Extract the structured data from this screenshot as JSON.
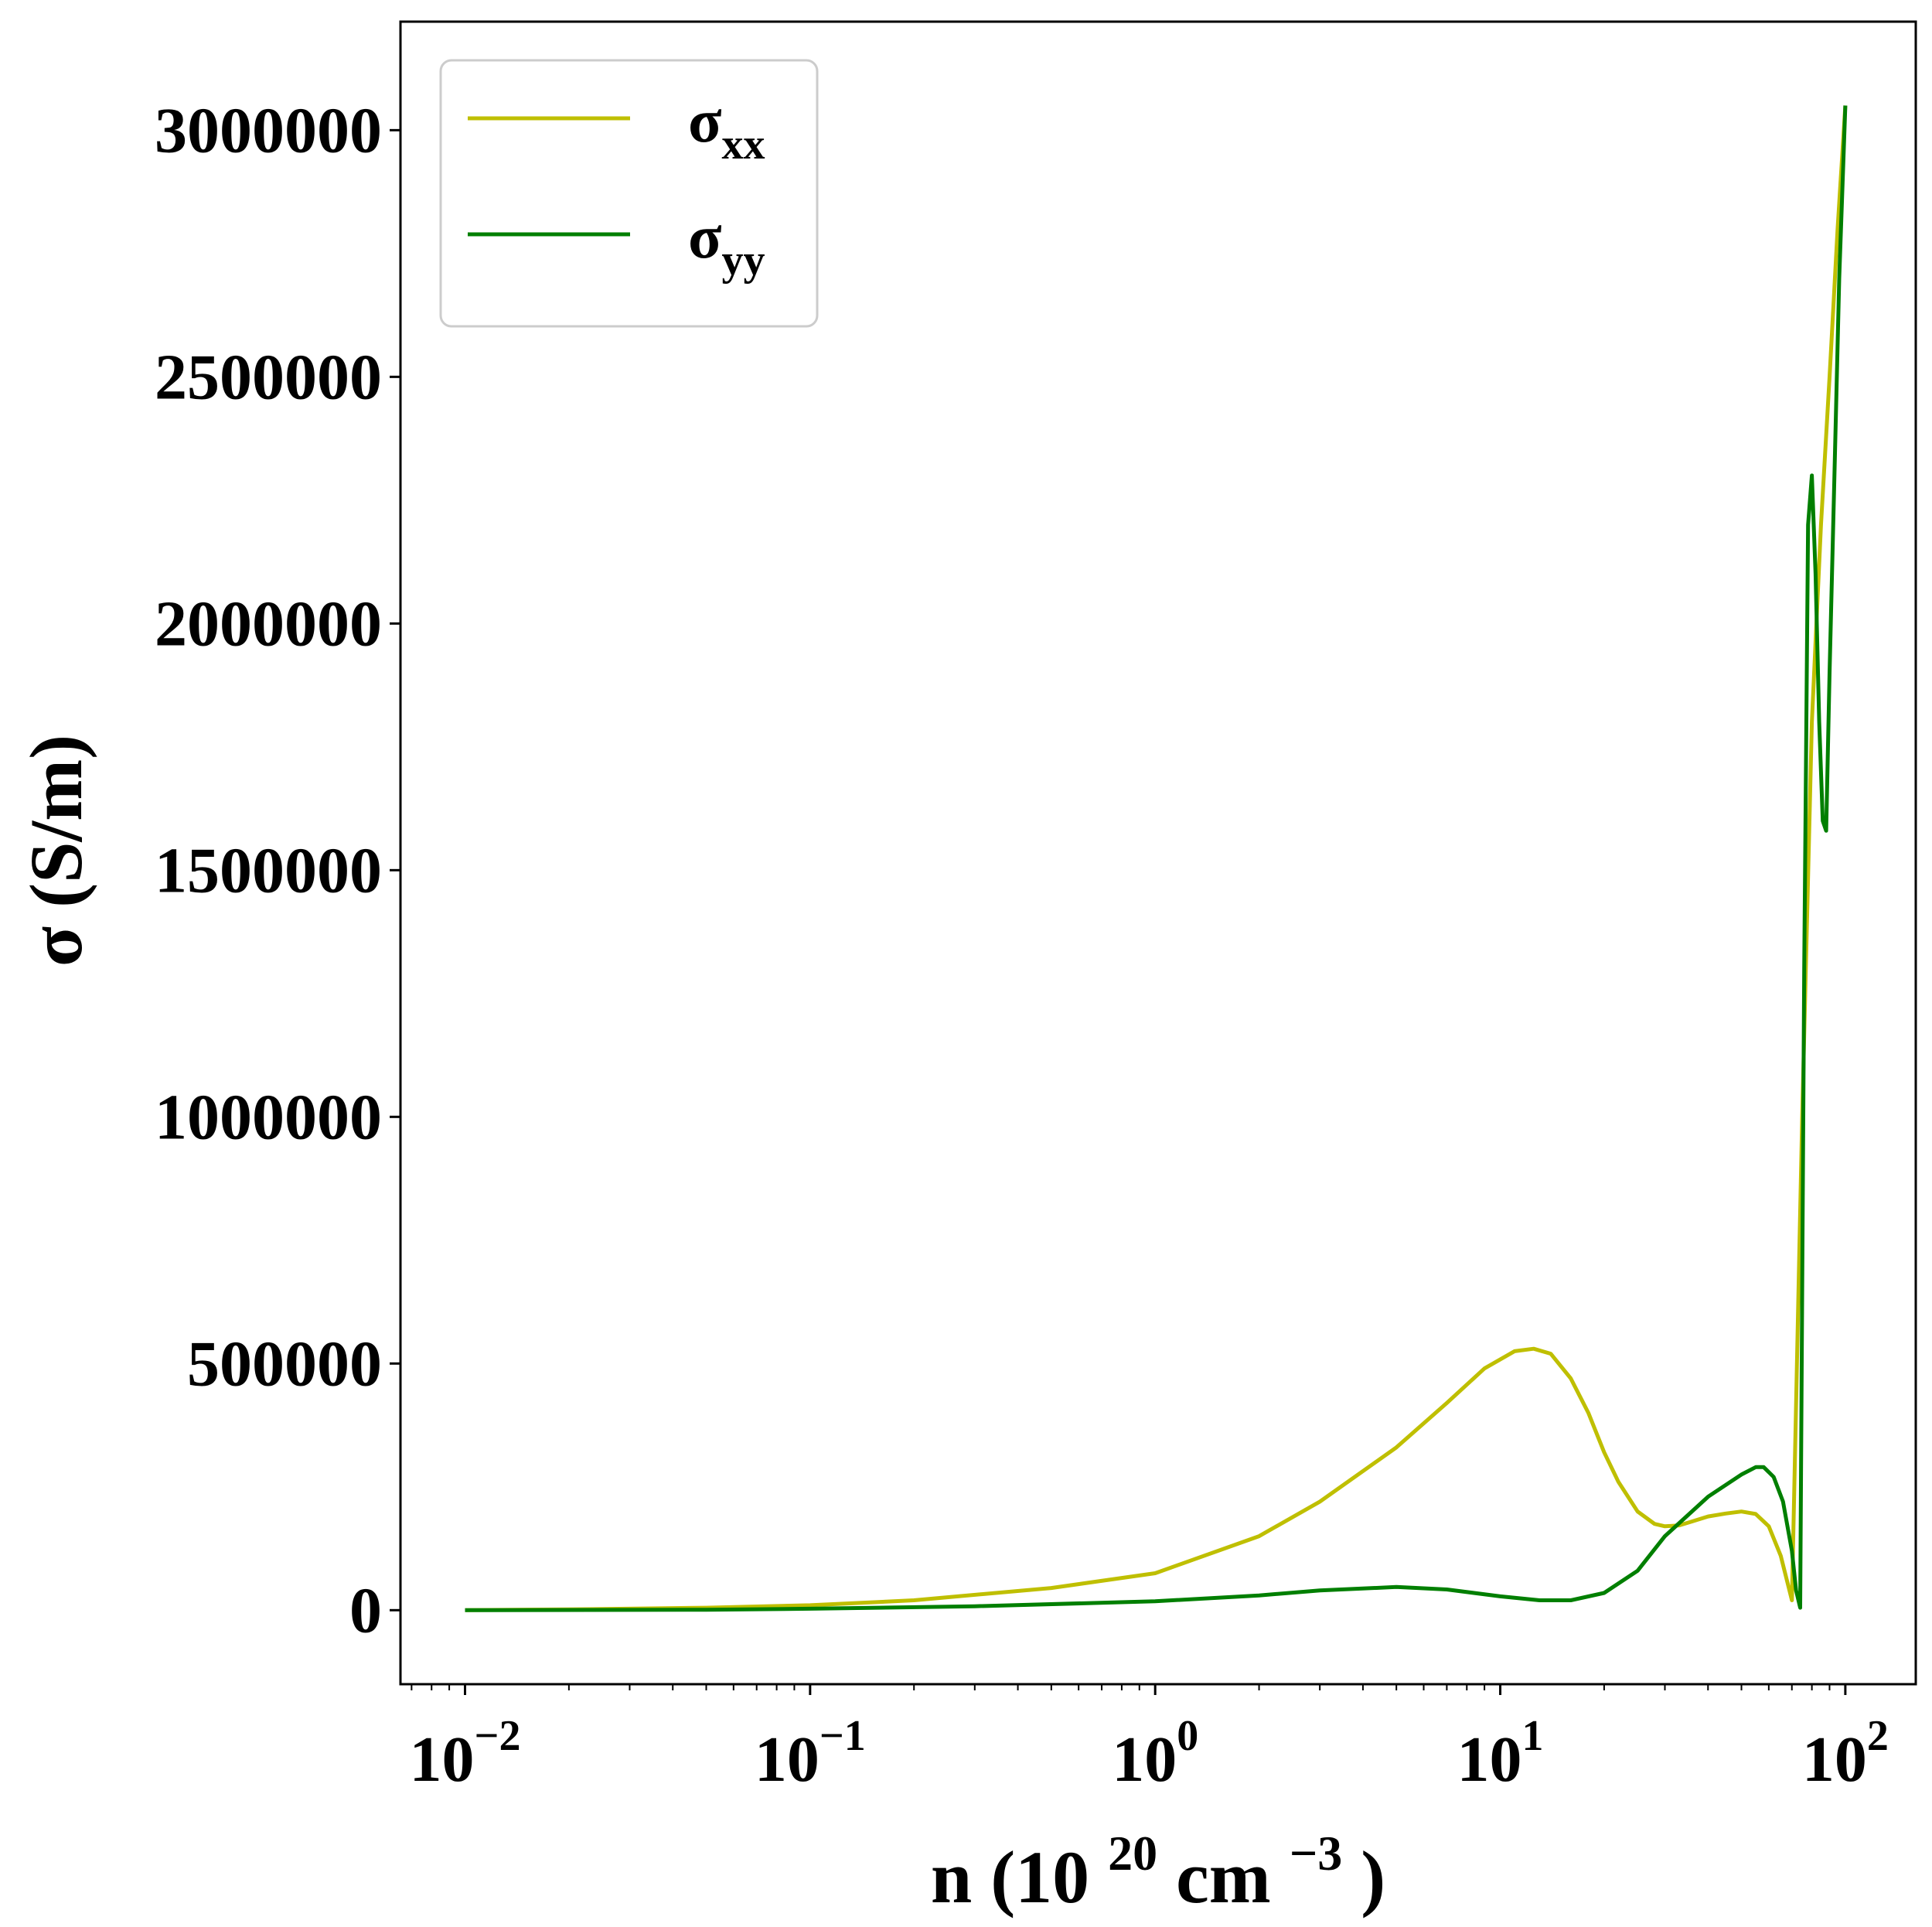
{
  "chart_data": {
    "type": "line",
    "xscale": "log",
    "xlim": [
      0.0065,
      160
    ],
    "ylim": [
      -150000,
      3220000
    ],
    "grid": false,
    "legend_position": "top-left",
    "xlabel": {
      "prefix": "n (10",
      "sup1": "20",
      "middle": " cm",
      "sup2": "−3",
      "suffix": ")"
    },
    "ylabel": "σ (S/m)",
    "xticks": [
      {
        "value": 0.01,
        "base": "10",
        "exp": "−2"
      },
      {
        "value": 0.1,
        "base": "10",
        "exp": "−1"
      },
      {
        "value": 1,
        "base": "10",
        "exp": "0"
      },
      {
        "value": 10,
        "base": "10",
        "exp": "1"
      },
      {
        "value": 100,
        "base": "10",
        "exp": "2"
      }
    ],
    "yticks": [
      {
        "value": 0,
        "label": "0"
      },
      {
        "value": 500000,
        "label": "500000"
      },
      {
        "value": 1000000,
        "label": "1000000"
      },
      {
        "value": 1500000,
        "label": "1500000"
      },
      {
        "value": 2000000,
        "label": "2000000"
      },
      {
        "value": 2500000,
        "label": "2500000"
      },
      {
        "value": 3000000,
        "label": "3000000"
      }
    ],
    "series": [
      {
        "name": "σ",
        "name_sub": "xx",
        "color": "#bfbf00",
        "x": [
          0.01,
          0.02,
          0.05,
          0.1,
          0.2,
          0.5,
          1,
          2,
          3,
          5,
          7,
          9,
          11,
          12.5,
          14,
          16,
          18,
          20,
          22,
          25,
          28,
          30,
          33,
          36,
          40,
          45,
          50,
          55,
          60,
          65,
          70,
          75,
          80,
          85,
          90,
          95,
          100
        ],
        "y": [
          0,
          1500,
          5000,
          10000,
          20000,
          45000,
          75000,
          150000,
          220000,
          330000,
          420000,
          490000,
          525000,
          530000,
          520000,
          470000,
          400000,
          320000,
          260000,
          200000,
          175000,
          170000,
          172000,
          180000,
          190000,
          196000,
          200000,
          195000,
          170000,
          110000,
          20000,
          1000000,
          1800000,
          2200000,
          2500000,
          2800000,
          3050000
        ]
      },
      {
        "name": "σ",
        "name_sub": "yy",
        "color": "#007f00",
        "x": [
          0.01,
          0.05,
          0.1,
          0.3,
          1,
          2,
          3,
          5,
          7,
          10,
          13,
          16,
          20,
          25,
          30,
          40,
          50,
          55,
          58,
          62,
          66,
          70,
          72,
          74,
          76,
          78,
          80,
          82,
          84,
          86,
          88,
          90,
          93,
          96,
          100
        ],
        "y": [
          0,
          1000,
          3000,
          8000,
          18000,
          30000,
          40000,
          47000,
          42000,
          28000,
          20000,
          20000,
          35000,
          80000,
          150000,
          230000,
          275000,
          290000,
          290000,
          270000,
          220000,
          120000,
          40000,
          5000,
          1300000,
          2200000,
          2300000,
          2100000,
          1800000,
          1600000,
          1580000,
          1900000,
          2300000,
          2700000,
          3050000
        ]
      }
    ]
  }
}
